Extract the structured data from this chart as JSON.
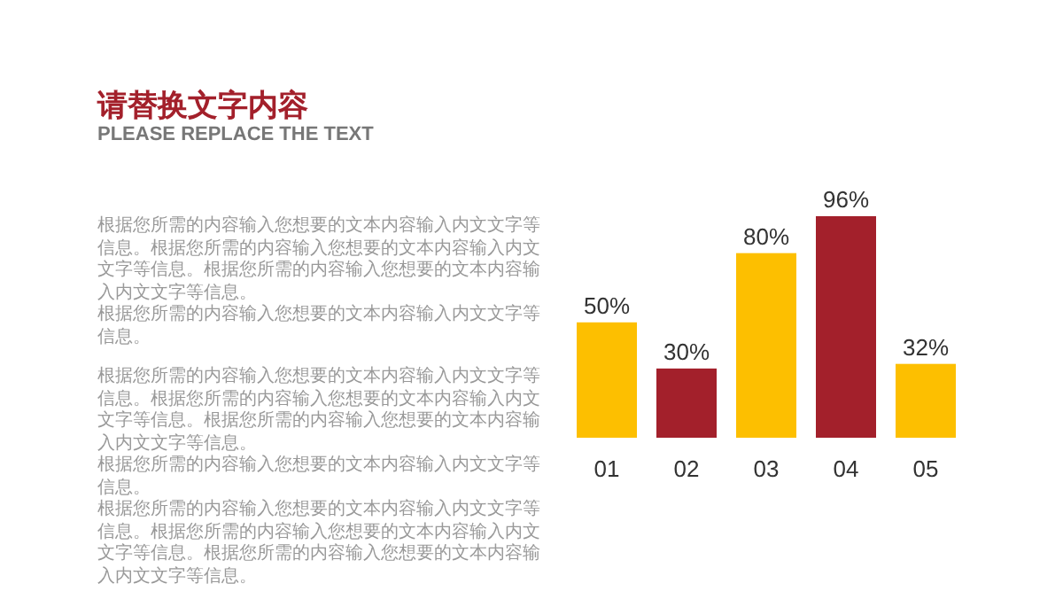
{
  "chart_data": {
    "type": "bar",
    "title": "请替换文字内容",
    "subtitle": "PLEASE REPLACE THE TEXT",
    "categories": [
      "01",
      "02",
      "03",
      "04",
      "05"
    ],
    "values": [
      50,
      30,
      80,
      96,
      32
    ],
    "colors": [
      "#fdbf00",
      "#a3202b",
      "#fdbf00",
      "#a3202b",
      "#fdbf00"
    ],
    "value_labels": [
      "50%",
      "30%",
      "80%",
      "96%",
      "32%"
    ],
    "annotations": [
      "根据您所需的内容输入您想要的文本内容输入内文文字等信息。根据您所需的内容输入您想要的文本内容输入内文文字等信息。根据您所需的内容输入您想要的文本内容输入内文文字等信息。",
      "根据您所需的内容输入您想要的文本内容输入内文文字等信息。",
      "根据您所需的内容输入您想要的文本内容输入内文文字等信息。根据您所需的内容输入您想要的文本内容输入内文文字等信息。根据您所需的内容输入您想要的文本内容输入内文文字等信息。",
      "根据您所需的内容输入您想要的文本内容输入内文文字等信息。",
      "根据您所需的内容输入您想要的文本内容输入内文文字等信息。根据您所需的内容输入您想要的文本内容输入内文文字等信息。根据您所需的内容输入您想要的文本内容输入内文文字等信息。"
    ]
  }
}
